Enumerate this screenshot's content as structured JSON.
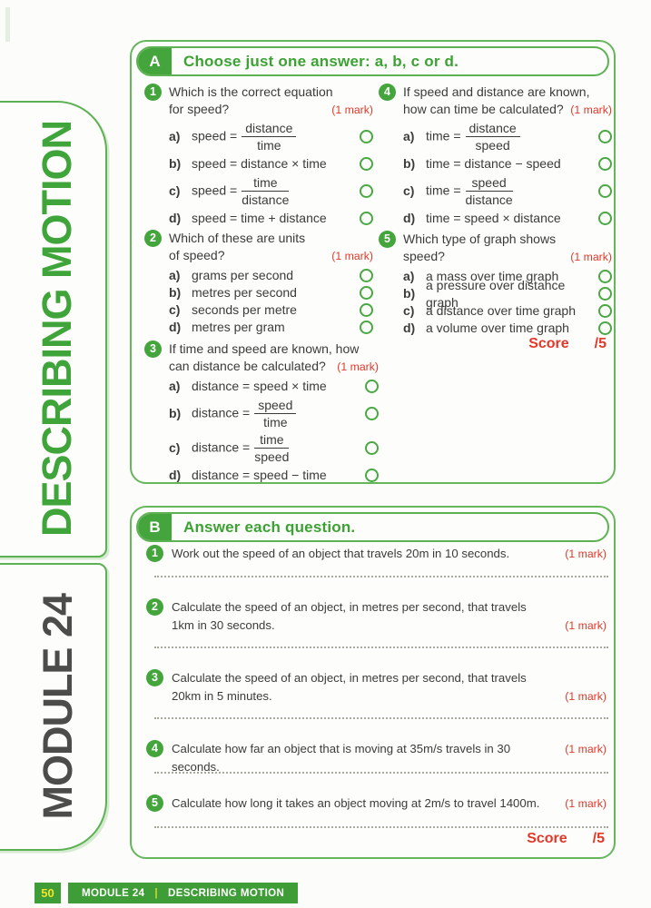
{
  "colors": {
    "accent_green": "#44a53c",
    "border_green": "#5cb152",
    "mark_red": "#e2382a",
    "footer_green": "#3e9d36",
    "page_number_yellow": "#f2e32b",
    "module_text_gray": "#4c4c4a"
  },
  "sidebar": {
    "top_label": "DESCRIBING MOTION",
    "bottom_label": "MODULE 24"
  },
  "section_a": {
    "badge": "A",
    "title": "Choose just one answer: a, b, c or d.",
    "mark_label": "(1 mark)",
    "score_label": "Score",
    "score_value": "/5",
    "letters": {
      "a": "a)",
      "b": "b)",
      "c": "c)",
      "d": "d)"
    },
    "q1": {
      "num": "1",
      "line1": "Which is the correct equation",
      "line2": "for speed?",
      "a_pre": "speed =",
      "a_num": "distance",
      "a_den": "time",
      "b_text": "speed = distance × time",
      "c_pre": "speed =",
      "c_num": "time",
      "c_den": "distance",
      "d_text": "speed = time + distance"
    },
    "q2": {
      "num": "2",
      "line1": "Which of these are units",
      "line2": "of speed?",
      "a": "grams per second",
      "b": "metres per second",
      "c": "seconds per metre",
      "d": "metres per gram"
    },
    "q3": {
      "num": "3",
      "line1": "If time and speed are known, how",
      "line2": "can distance be calculated?",
      "a_text": "distance = speed × time",
      "b_pre": "distance =",
      "b_num": "speed",
      "b_den": "time",
      "c_pre": "distance =",
      "c_num": "time",
      "c_den": "speed",
      "d_text": "distance = speed − time"
    },
    "q4": {
      "num": "4",
      "line1": "If speed and distance are known,",
      "line2": "how can time be calculated?",
      "a_pre": "time =",
      "a_num": "distance",
      "a_den": "speed",
      "b_text": "time = distance − speed",
      "c_pre": "time =",
      "c_num": "speed",
      "c_den": "distance",
      "d_text": "time = speed × distance"
    },
    "q5": {
      "num": "5",
      "line1": "Which type of graph shows",
      "line2": "speed?",
      "a": "a mass over time graph",
      "b": "a pressure over distance graph",
      "c": "a distance over time graph",
      "d": "a volume over time graph"
    }
  },
  "section_b": {
    "badge": "B",
    "title": "Answer each question.",
    "mark_label": "(1 mark)",
    "score_label": "Score",
    "score_value": "/5",
    "q1": {
      "num": "1",
      "line1": "Work out the speed of an object that travels 20m in 10 seconds."
    },
    "q2": {
      "num": "2",
      "line1": "Calculate the speed of an object, in metres per second, that travels",
      "line2": "1km in 30 seconds."
    },
    "q3": {
      "num": "3",
      "line1": "Calculate the speed of an object, in metres per second, that travels",
      "line2": "20km in 5 minutes."
    },
    "q4": {
      "num": "4",
      "line1": "Calculate how far an object that is moving at 35m/s travels in 30 seconds."
    },
    "q5": {
      "num": "5",
      "line1": "Calculate how long it takes an object moving at 2m/s to travel 1400m."
    }
  },
  "footer": {
    "page_number": "50",
    "module_label": "MODULE 24",
    "separator": "|",
    "topic_label": "DESCRIBING MOTION"
  }
}
